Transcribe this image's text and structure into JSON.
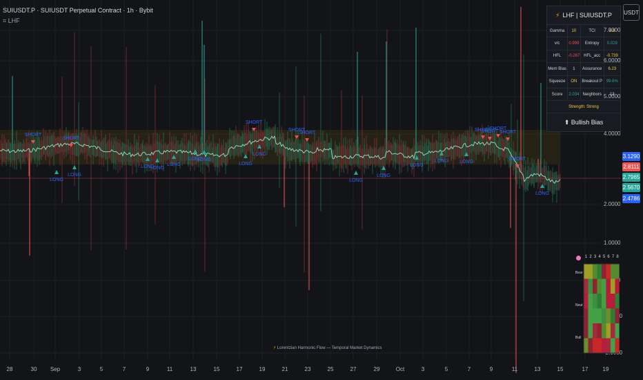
{
  "header": {
    "title": "SUIUSDT.P · SUIUSDT Perpetual Contract · 1h · Bybit",
    "indicator": "⌗ LHF"
  },
  "currency_button": "USDT",
  "info_panel": {
    "title": "LHF | SUIUSDT.P",
    "rows": [
      {
        "k1": "Gamma",
        "v1": "10",
        "v1_color": "#f5c842",
        "k2": "TCI",
        "v2": "6.8",
        "v2_color": "#f5c842"
      },
      {
        "k1": "v/c",
        "v1": "0.999",
        "v1_color": "#ef5350",
        "k2": "Entropy",
        "v2": "0.029",
        "v2_color": "#26a69a"
      },
      {
        "k1": "HFL",
        "v1": "-0.267",
        "v1_color": "#ef5350",
        "k2": "HFL_acc",
        "v2": "-0.739",
        "v2_color": "#f5c842"
      },
      {
        "k1": "Mem Bias",
        "v1": "1",
        "v1_color": "#d1d4dc",
        "k2": "Assurance",
        "v2": "6.23",
        "v2_color": "#f5c842"
      },
      {
        "k1": "Squeeze",
        "v1": "ON",
        "v1_color": "#f5c842",
        "k2": "Breakout P",
        "v2": "99.6%",
        "v2_color": "#26a69a"
      },
      {
        "k1": "Score",
        "v1": "2.034",
        "v1_color": "#26a69a",
        "k2": "Neighbors",
        "v2": "13",
        "v2_color": "#d1d4dc"
      }
    ],
    "strength": "Strength: Strong",
    "bias": "⬆ Bullish Bias"
  },
  "y_axis": {
    "ticks": [
      "7.0000",
      "6.0000",
      "5.0000",
      "4.0000",
      "2.0000",
      "1.0000",
      "0.0000",
      "-1.0000",
      "-2.0000"
    ],
    "tags": [
      {
        "label": "3.1290",
        "color": "#2962ff"
      },
      {
        "label": "2.8111",
        "color": "#ef5350"
      },
      {
        "label": "2.7965",
        "color": "#26a69a"
      },
      {
        "label": "2.5670",
        "color": "#26a69a"
      },
      {
        "label": "2.4786",
        "color": "#2962ff"
      }
    ]
  },
  "x_axis": {
    "labels": [
      "28",
      "30",
      "Sep",
      "3",
      "5",
      "7",
      "9",
      "11",
      "13",
      "15",
      "17",
      "19",
      "21",
      "23",
      "25",
      "27",
      "29",
      "Oct",
      "3",
      "5",
      "7",
      "9",
      "11",
      "13",
      "15",
      "17",
      "19"
    ]
  },
  "signals": {
    "short_label": "SHORT",
    "long_label": "LONG"
  },
  "heatmap": {
    "columns": [
      "1",
      "2",
      "3",
      "4",
      "5",
      "6",
      "7",
      "8"
    ],
    "rows": [
      "Bear",
      "Neut",
      "Bull"
    ]
  },
  "footer": "Lorentzian Harmonic Flow — Temporal Market Dynamics",
  "colors": {
    "bg": "#131417",
    "bull": "#26a69a",
    "bear": "#ef5350",
    "accent": "#f5c842",
    "signal_text": "#2962ff"
  }
}
